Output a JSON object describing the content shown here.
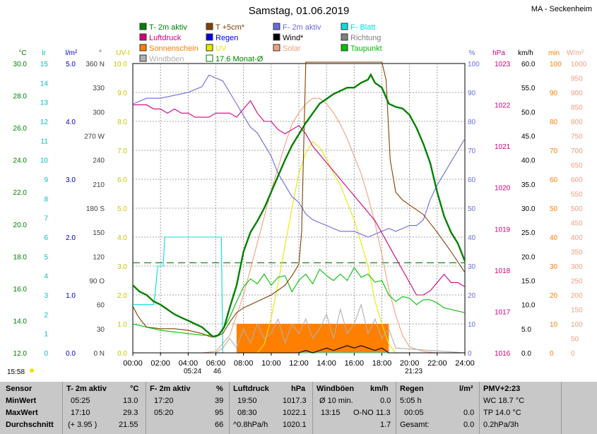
{
  "chart_data": {
    "type": "line",
    "title": "Samstag, 01.06.2019",
    "station": "MA - Seckenheim",
    "legend": [
      {
        "label": "T- 2m aktiv",
        "color": "#008000"
      },
      {
        "label": "T +5cm*",
        "color": "#804000"
      },
      {
        "label": "F- 2m aktiv",
        "color": "#6a6ae0"
      },
      {
        "label": "F- Blatt",
        "color": "#00e0e0"
      },
      {
        "label": "Luftdruck",
        "color": "#d0007a"
      },
      {
        "label": "Regen",
        "color": "#0000e0"
      },
      {
        "label": "Wind*",
        "color": "#000000"
      },
      {
        "label": "Richtung",
        "color": "#808080"
      },
      {
        "label": "Sonnenschein",
        "color": "#ff7f00"
      },
      {
        "label": "UV",
        "color": "#e8e800"
      },
      {
        "label": "Solar",
        "color": "#f0a080"
      },
      {
        "label": "Taupunkt",
        "color": "#00c000"
      },
      {
        "label": "Windböen",
        "color": "#b0b0b0"
      },
      {
        "label": "17.6 Monat-Ø",
        "color": "#008000"
      }
    ],
    "x_ticks": [
      "00:00",
      "02:00",
      "04:00",
      "06:00",
      "08:00",
      "10:00",
      "12:00",
      "14:00",
      "16:00",
      "18:00",
      "20:00",
      "22:00",
      "24:00"
    ],
    "axes": [
      {
        "unit": "°C",
        "color": "#008000",
        "ticks": [
          "30.0",
          "28.0",
          "26.0",
          "24.0",
          "22.0",
          "20.0",
          "18.0",
          "16.0",
          "14.0",
          "12.0"
        ]
      },
      {
        "unit": "lr",
        "color": "#00c0c0",
        "ticks": [
          "15",
          "14",
          "13",
          "12",
          "11",
          "10",
          "9",
          "8",
          "7",
          "6",
          "5",
          "4",
          "3",
          "2",
          "1",
          "0"
        ]
      },
      {
        "unit": "l/m²",
        "color": "#0000c0",
        "ticks": [
          "5.0",
          "4.0",
          "3.0",
          "2.0",
          "1.0",
          "0.0"
        ]
      },
      {
        "unit": "°",
        "color": "#404040",
        "ticks": [
          "360 N",
          "330",
          "300",
          "270 W",
          "240",
          "210",
          "180 S",
          "150",
          "120",
          "90 O",
          "60",
          "30",
          "0 N"
        ]
      },
      {
        "unit": "UV-I",
        "color": "#c8c800",
        "ticks": [
          "10.0",
          "9.0",
          "8.0",
          "7.0",
          "6.0",
          "5.0",
          "4.0",
          "3.0",
          "2.0",
          "1.0",
          "0.0"
        ]
      },
      {
        "unit": "%",
        "color": "#6a6ae0",
        "ticks": [
          "100",
          "90",
          "80",
          "70",
          "60",
          "50",
          "40",
          "30",
          "20",
          "10",
          "0"
        ]
      },
      {
        "unit": "hPa",
        "color": "#d0007a",
        "ticks": [
          "1023",
          "1022",
          "1021",
          "1020",
          "1019",
          "1018",
          "1017",
          "1016"
        ]
      },
      {
        "unit": "km/h",
        "color": "#000000",
        "ticks": [
          "60.0",
          "55.0",
          "50.0",
          "45.0",
          "40.0",
          "35.0",
          "30.0",
          "25.0",
          "20.0",
          "15.0",
          "10.0",
          "5.0",
          "0.0"
        ]
      },
      {
        "unit": "min",
        "color": "#ff7f00",
        "ticks": [
          "100",
          "90",
          "80",
          "70",
          "60",
          "50",
          "40",
          "30",
          "20",
          "10",
          "0"
        ]
      },
      {
        "unit": "W/m²",
        "color": "#f0a080",
        "ticks": [
          "1000",
          "950",
          "900",
          "850",
          "800",
          "750",
          "700",
          "650",
          "600",
          "550",
          "500",
          "450",
          "400",
          "350",
          "300",
          "250",
          "200",
          "150",
          "100",
          "50",
          "0"
        ]
      }
    ],
    "series": [
      {
        "name": "T- 2m aktiv",
        "color": "#008000",
        "axis": "temp",
        "ylim": [
          12,
          30
        ],
        "x": [
          0,
          0.5,
          1,
          1.5,
          2,
          2.5,
          3,
          3.5,
          4,
          4.5,
          5,
          5.4,
          5.8,
          6.2,
          6.6,
          7,
          7.5,
          8,
          8.5,
          9,
          9.5,
          10,
          10.5,
          11,
          11.5,
          12,
          12.5,
          13,
          13.5,
          14,
          14.5,
          15,
          15.5,
          16,
          16.5,
          17,
          17.2,
          17.5,
          18,
          18.5,
          19,
          19.5,
          20,
          20.5,
          21,
          21.5,
          22,
          22.5,
          23,
          23.5,
          24
        ],
        "values": [
          16.2,
          15.8,
          15.6,
          15.2,
          15.0,
          14.7,
          14.4,
          14.2,
          14.0,
          13.8,
          13.6,
          13.3,
          13.0,
          13.1,
          13.6,
          14.8,
          16.2,
          18.3,
          19.5,
          20.2,
          21.0,
          22.0,
          23.0,
          24.0,
          24.9,
          25.6,
          26.3,
          26.9,
          27.5,
          27.8,
          28.1,
          28.3,
          28.5,
          28.5,
          28.8,
          29.0,
          29.3,
          28.8,
          28.5,
          27.5,
          27.3,
          27.2,
          26.8,
          26.0,
          25.0,
          23.8,
          22.0,
          20.5,
          19.5,
          18.8,
          17.7
        ]
      },
      {
        "name": "T +5cm*",
        "color": "#804000",
        "axis": "temp",
        "ylim": [
          12,
          30
        ],
        "x": [
          0,
          0.3,
          0.6,
          1,
          2,
          3,
          4,
          5,
          5.6,
          6,
          6.5,
          7,
          7.5,
          8,
          9,
          10,
          11,
          11.5,
          12,
          12.2,
          12.5,
          13,
          14,
          15,
          16,
          17,
          18,
          18.3,
          18.6,
          19,
          19.5,
          20,
          21,
          22,
          23,
          24
        ],
        "values": [
          14.9,
          14.4,
          14.0,
          13.6,
          13.5,
          13.5,
          13.4,
          13.2,
          13.0,
          13.0,
          13.2,
          13.9,
          14.5,
          14.8,
          15.2,
          15.6,
          16.2,
          16.8,
          17.5,
          19.5,
          31.0,
          31.0,
          31.0,
          31.0,
          31.0,
          31.0,
          31.0,
          29.0,
          24.0,
          22.0,
          21.5,
          21.2,
          20.6,
          19.5,
          18.3,
          17.0
        ]
      },
      {
        "name": "F- 2m aktiv",
        "color": "#6a6ae0",
        "axis": "hum",
        "ylim": [
          0,
          100
        ],
        "x": [
          0,
          0.5,
          1,
          2,
          3,
          4,
          5,
          5.5,
          6,
          6.5,
          7,
          7.5,
          8,
          8.5,
          9,
          9.5,
          10,
          10.5,
          11,
          11.5,
          12,
          12.5,
          13,
          13.5,
          14,
          14.5,
          15,
          15.5,
          16,
          16.5,
          17,
          17.5,
          18,
          18.5,
          19,
          19.5,
          20,
          20.5,
          21,
          21.5,
          22,
          22.5,
          23,
          23.5,
          24
        ],
        "values": [
          86,
          87,
          88,
          88,
          89,
          90,
          92,
          96,
          95,
          94,
          90,
          86,
          82,
          78,
          76,
          72,
          68,
          62,
          58,
          54,
          52,
          48,
          46,
          45,
          44,
          43,
          42,
          42,
          42,
          41,
          40,
          41,
          42,
          43,
          42,
          43,
          44,
          44,
          46,
          53,
          58,
          62,
          66,
          70,
          74
        ]
      },
      {
        "name": "F- Blatt",
        "color": "#00e0e0",
        "axis": "leaf",
        "ylim": [
          0,
          15
        ],
        "x": [
          0,
          0.5,
          1,
          1.5,
          1.6,
          1.8,
          2.2,
          2.3,
          3,
          4,
          5,
          6,
          6.4,
          6.5,
          7,
          24
        ],
        "values": [
          2.5,
          2.5,
          2.5,
          2.5,
          3.0,
          4.5,
          4.5,
          6.0,
          6.0,
          6.0,
          6.0,
          6.0,
          6.0,
          0,
          0,
          0
        ]
      },
      {
        "name": "Luftdruck",
        "color": "#d0007a",
        "axis": "press",
        "ylim": [
          1016,
          1023
        ],
        "x": [
          0,
          0.5,
          1,
          1.5,
          2,
          2.5,
          3,
          3.5,
          4,
          4.5,
          5,
          5.5,
          6,
          6.5,
          7,
          7.5,
          8,
          8.5,
          9,
          9.5,
          10,
          10.5,
          11,
          11.5,
          12,
          12.5,
          13,
          13.5,
          14,
          14.5,
          15,
          15.5,
          16,
          16.5,
          17,
          17.5,
          18,
          18.5,
          19,
          19.5,
          20,
          20.5,
          21,
          21.5,
          22,
          22.5,
          23,
          23.5,
          24
        ],
        "values": [
          1022.0,
          1022.0,
          1022.0,
          1021.9,
          1021.9,
          1021.8,
          1021.9,
          1021.8,
          1021.8,
          1021.7,
          1021.7,
          1021.7,
          1021.8,
          1021.8,
          1021.8,
          1021.7,
          1021.9,
          1022.1,
          1021.8,
          1021.6,
          1021.6,
          1021.4,
          1021.3,
          1021.4,
          1021.5,
          1021.3,
          1021.0,
          1020.8,
          1020.6,
          1020.4,
          1020.2,
          1020.0,
          1019.8,
          1019.6,
          1019.4,
          1019.2,
          1018.9,
          1018.6,
          1018.3,
          1018.0,
          1017.7,
          1017.4,
          1017.4,
          1017.5,
          1017.7,
          1017.9,
          1017.7,
          1017.7,
          1017.6
        ]
      },
      {
        "name": "UV",
        "color": "#e8e800",
        "axis": "uv",
        "ylim": [
          0,
          10
        ],
        "x": [
          0,
          9,
          9.5,
          10,
          10.5,
          11,
          11.5,
          12,
          12.5,
          13,
          13.5,
          14,
          14.5,
          15,
          15.5,
          16,
          16.5,
          17,
          17.5,
          18,
          18.5,
          19,
          24
        ],
        "values": [
          0,
          0,
          0.3,
          1.2,
          2.4,
          3.7,
          5.0,
          6.2,
          6.9,
          7.3,
          7.1,
          6.7,
          6.2,
          5.8,
          5.2,
          4.6,
          3.8,
          3.0,
          1.8,
          1.0,
          0.3,
          0,
          0
        ]
      },
      {
        "name": "Solar",
        "color": "#f0a080",
        "axis": "solar",
        "ylim": [
          0,
          1000
        ],
        "x": [
          0,
          5,
          6,
          7,
          8,
          9,
          10,
          10.5,
          11,
          11.5,
          12,
          12.5,
          13,
          13.5,
          14,
          14.5,
          15,
          15.5,
          16,
          16.5,
          17,
          17.5,
          18,
          18.5,
          19,
          19.5,
          20,
          21,
          22,
          24
        ],
        "values": [
          0,
          0,
          5,
          60,
          200,
          380,
          560,
          640,
          720,
          790,
          830,
          860,
          880,
          880,
          860,
          830,
          790,
          740,
          680,
          620,
          540,
          450,
          340,
          220,
          130,
          60,
          20,
          5,
          0,
          0
        ]
      },
      {
        "name": "Taupunkt",
        "color": "#00c000",
        "axis": "temp",
        "ylim": [
          12,
          30
        ],
        "x": [
          0,
          0.5,
          1,
          2,
          3,
          4,
          5,
          5.5,
          6,
          6.5,
          7,
          7.5,
          8,
          8.5,
          9,
          9.5,
          10,
          10.5,
          11,
          11.5,
          12,
          12.5,
          13,
          13.5,
          14,
          14.5,
          15,
          15.5,
          16,
          16.5,
          17,
          17.5,
          18,
          18.5,
          19,
          19.5,
          20,
          20.5,
          21,
          21.5,
          22,
          22.5,
          23,
          23.5,
          24
        ],
        "values": [
          13.8,
          13.7,
          13.6,
          13.4,
          13.3,
          13.2,
          13.1,
          13.1,
          13.0,
          13.4,
          14.2,
          15.2,
          16.1,
          16.6,
          16.3,
          16.9,
          16.2,
          16.7,
          16.8,
          15.8,
          16.5,
          16.9,
          16.3,
          17.2,
          16.8,
          16.5,
          16.9,
          16.5,
          17.3,
          16.7,
          16.9,
          16.4,
          16.5,
          15.6,
          15.2,
          15.5,
          15.4,
          15.0,
          15.3,
          15.3,
          15.1,
          14.8,
          14.7,
          14.6,
          14.5
        ]
      },
      {
        "name": "Windböen",
        "color": "#b0b0b0",
        "axis": "wind",
        "ylim": [
          0,
          60
        ],
        "x": [
          0,
          6,
          6.5,
          7,
          7.5,
          8,
          8.5,
          9,
          9.5,
          10,
          10.5,
          11,
          11.5,
          12,
          12.5,
          13,
          13.5,
          14,
          14.5,
          15,
          15.5,
          16,
          16.5,
          17,
          17.5,
          18,
          18.5,
          19,
          24
        ],
        "values": [
          0,
          0,
          1,
          3,
          1,
          5,
          2,
          6,
          3,
          4,
          7,
          2,
          6,
          4,
          7,
          3,
          5,
          8,
          3,
          9,
          4,
          6,
          10,
          4,
          7,
          3,
          5,
          1,
          0
        ]
      },
      {
        "name": "Wind*",
        "color": "#000000",
        "axis": "wind",
        "ylim": [
          0,
          60
        ],
        "x": [
          0,
          12,
          12.5,
          13,
          13.5,
          14,
          14.5,
          15,
          15.5,
          16,
          16.5,
          17,
          17.5,
          18,
          18.5,
          24
        ],
        "values": [
          0,
          0,
          0.5,
          0,
          0.5,
          1,
          0.5,
          1,
          1.5,
          1,
          1.5,
          1,
          0.5,
          1,
          0,
          0
        ]
      }
    ],
    "sunshine_bars": {
      "color": "#ff7f00",
      "start": "07:30",
      "end": "18:30",
      "value_min": 10
    },
    "monthly_mean": {
      "label": "17.6 Monat-Ø",
      "value": 17.6
    },
    "under_axis": {
      "sunrise": "05:24",
      "sunrise_min": "46",
      "sunset": "21:23",
      "left_time": "15:58"
    }
  },
  "table": {
    "headers": {
      "sensor": "Sensor",
      "temp": "T- 2m aktiv",
      "temp_unit": "°C",
      "hum": "F- 2m aktiv",
      "hum_unit": "%",
      "press": "Luftdruck",
      "press_unit": "hPa",
      "wind": "Windböen",
      "wind_unit": "km/h",
      "rain": "Regen",
      "rain_unit": "l/m²",
      "pmv": "PMV+2:23"
    },
    "rows": [
      {
        "label": "MinWert",
        "t_time": "05:25",
        "t_val": "13.0",
        "f_time": "17:20",
        "f_val": "39",
        "p_time": "19:50",
        "p_val": "1017.3",
        "w_time": "Ø 10 min.",
        "w_val": "0.0",
        "r_time": "5:05 h",
        "r_val": "",
        "pmv": "WC 18.7 °C"
      },
      {
        "label": "MaxWert",
        "t_time": "17:10",
        "t_val": "29.3",
        "f_time": "05:20",
        "f_val": "95",
        "p_time": "08:30",
        "p_val": "1022.1",
        "w_time": "13:15",
        "w_dir": "O-NO",
        "w_val": "11.3",
        "r_time": "00:05",
        "r_val": "0.0",
        "pmv": "TP 14.0 °C"
      },
      {
        "label": "Durchschnitt",
        "t_time": "(+ 3.95 )",
        "t_val": "21.55",
        "f_time": "",
        "f_val": "66",
        "p_time": "^0.8hPa/h",
        "p_val": "1020.1",
        "w_time": "",
        "w_val": "1.7",
        "r_time": "Gesamt:",
        "r_val": "0.0",
        "pmv": "0.2hPa/3h"
      }
    ]
  }
}
